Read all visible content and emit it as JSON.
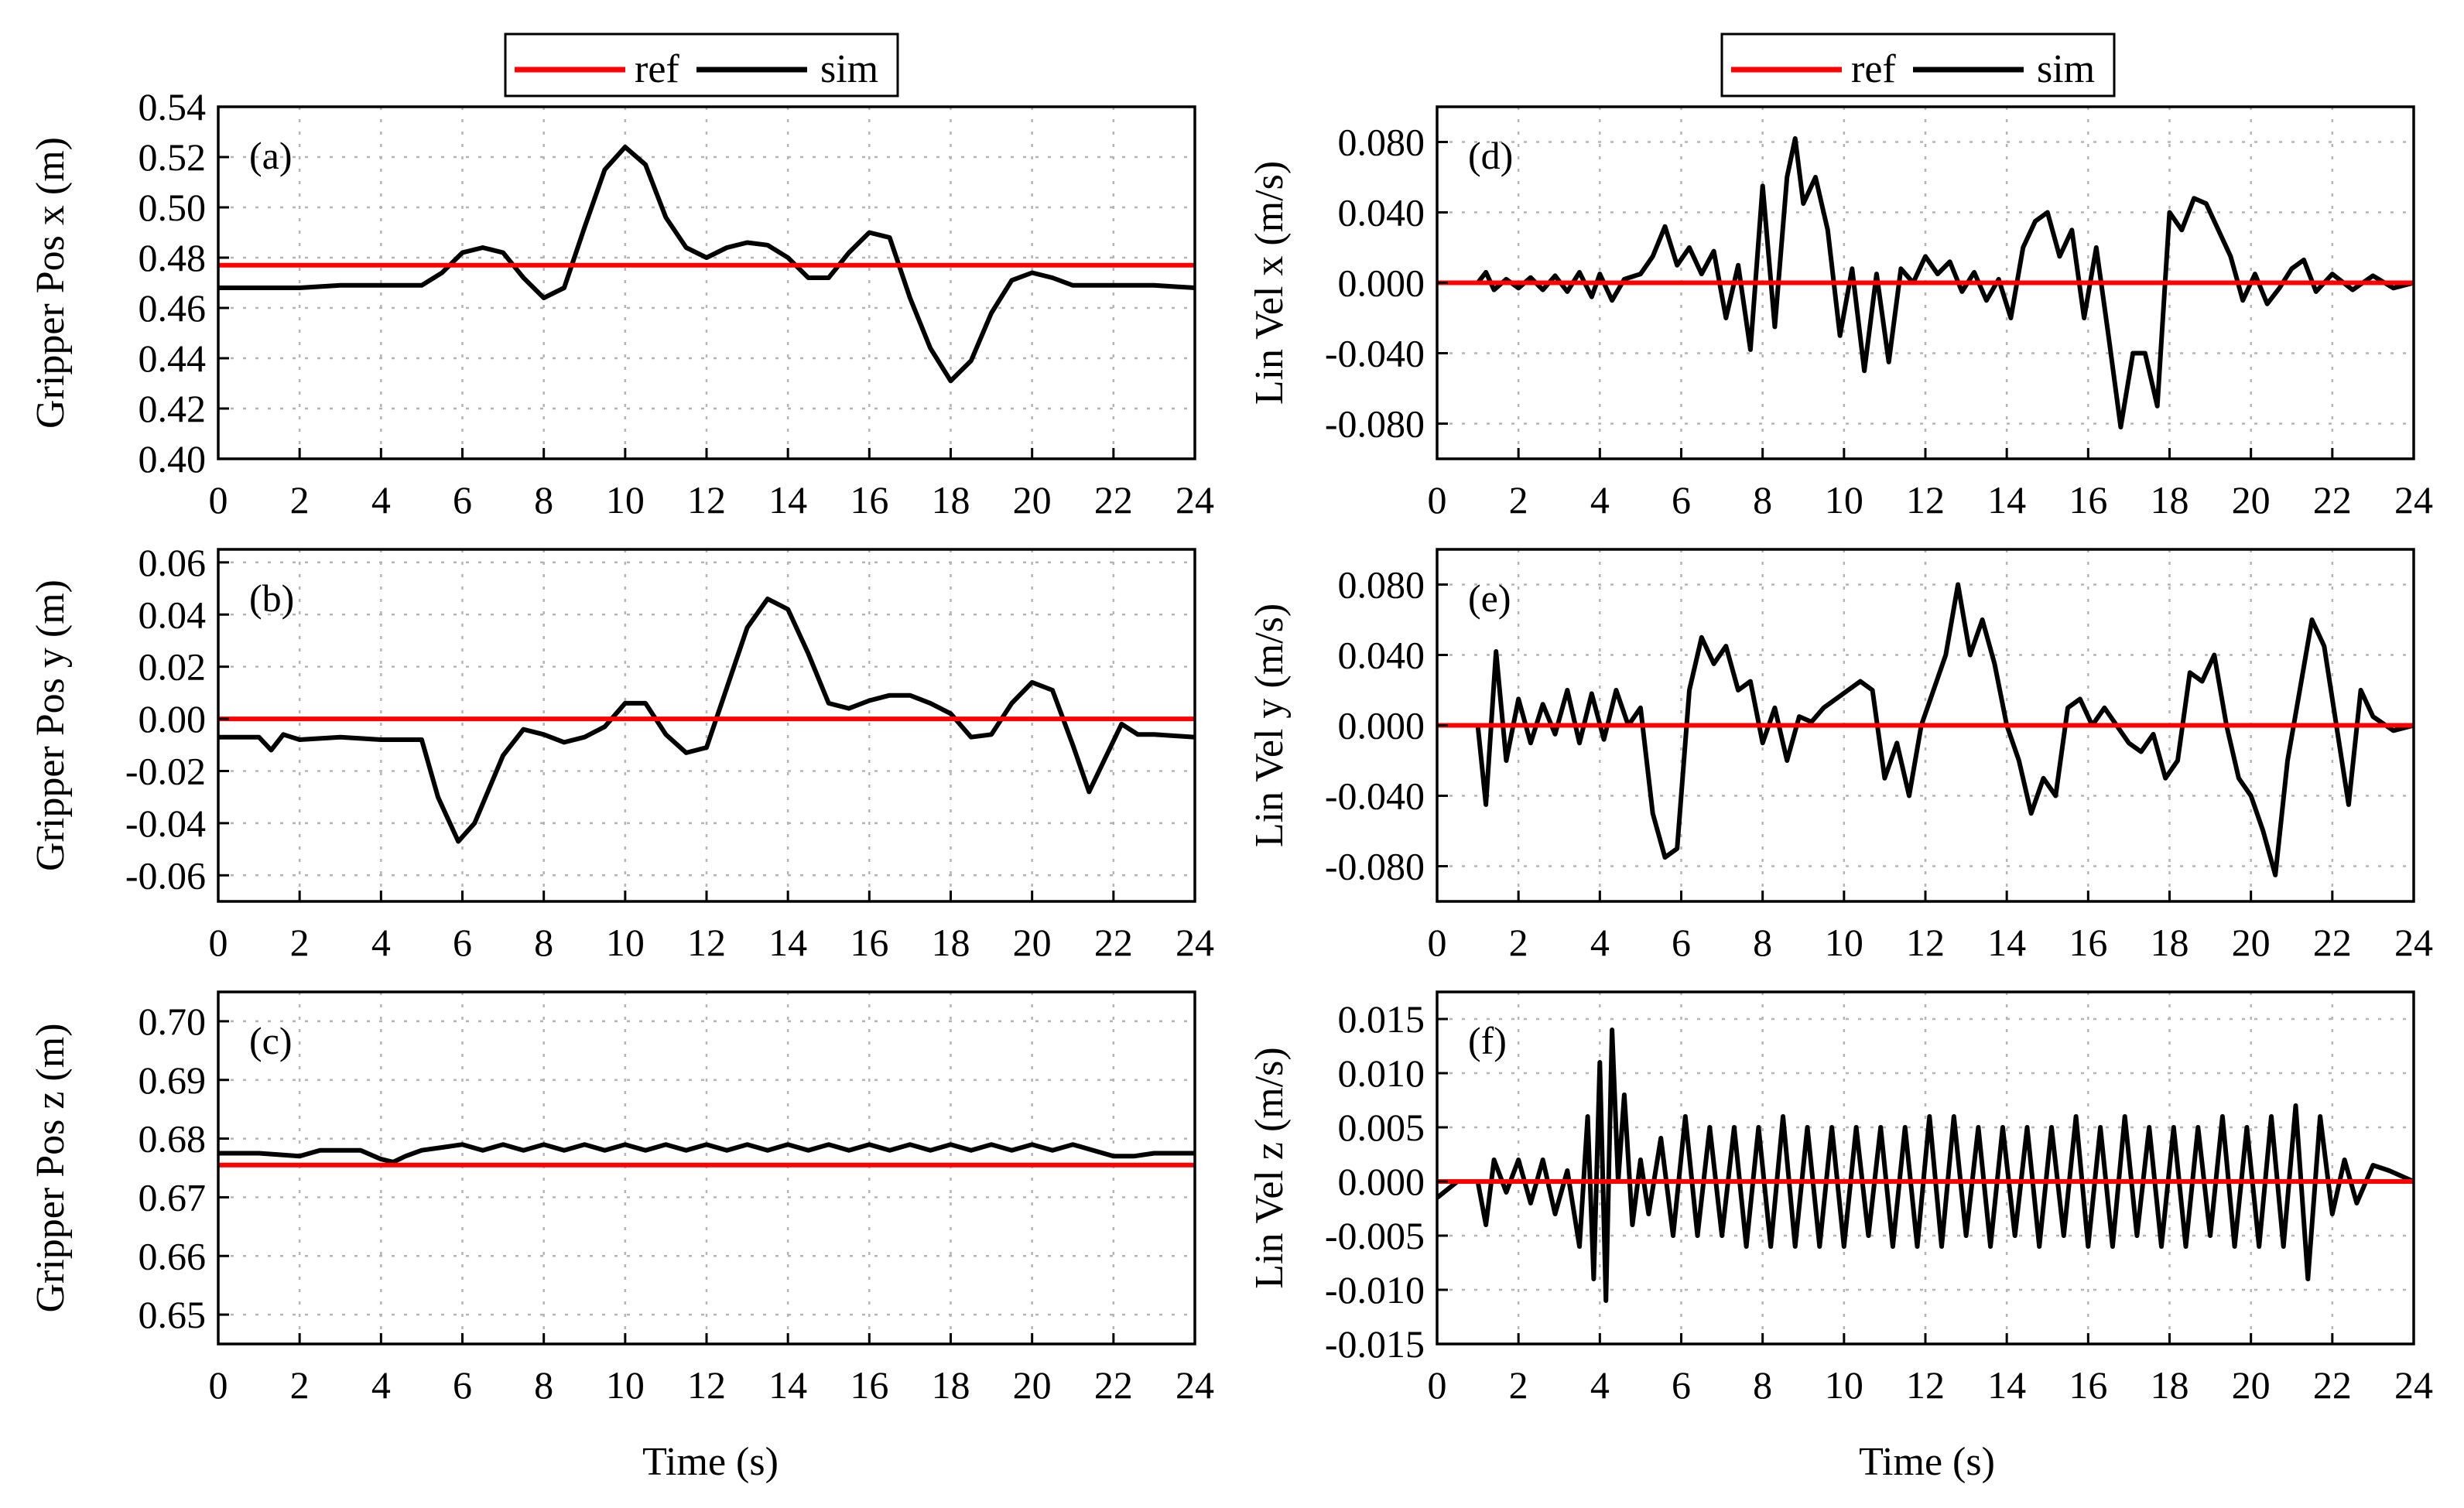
{
  "colors": {
    "ref": "#ff0000",
    "sim": "#000000",
    "grid": "#b4b4b4",
    "axis": "#000000"
  },
  "xlabel_left": "Time (s)",
  "xlabel_right": "Time (s)",
  "legend_left": {
    "ref_label": "ref",
    "sim_label": "sim"
  },
  "legend_right": {
    "ref_label": "ref",
    "sim_label": "sim"
  },
  "chart_data": [
    {
      "id": "a",
      "type": "line",
      "panel_label": "(a)",
      "ylabel": "Gripper Pos x (m)",
      "xlim": [
        0,
        24
      ],
      "ylim": [
        0.4,
        0.54
      ],
      "xticks": [
        0,
        2,
        4,
        6,
        8,
        10,
        12,
        14,
        16,
        18,
        20,
        22,
        24
      ],
      "yticks": [
        0.4,
        0.42,
        0.44,
        0.46,
        0.48,
        0.5,
        0.52,
        0.54
      ],
      "ytick_labels": [
        "0.40",
        "0.42",
        "0.44",
        "0.46",
        "0.48",
        "0.50",
        "0.52",
        "0.54"
      ],
      "grid": true,
      "legend": "above",
      "series": [
        {
          "name": "ref",
          "x": [
            0,
            24
          ],
          "y": [
            0.477,
            0.477
          ]
        },
        {
          "name": "sim",
          "x": [
            0,
            1,
            2,
            3,
            4,
            5,
            5.5,
            6,
            6.5,
            7,
            7.5,
            8,
            8.5,
            9,
            9.5,
            10,
            10.5,
            11,
            11.5,
            12,
            12.5,
            13,
            13.5,
            14,
            14.5,
            15,
            15.5,
            16,
            16.5,
            17,
            17.5,
            18,
            18.5,
            19,
            19.5,
            20,
            20.5,
            21,
            22,
            23,
            24
          ],
          "y": [
            0.468,
            0.468,
            0.468,
            0.469,
            0.469,
            0.469,
            0.474,
            0.482,
            0.484,
            0.482,
            0.472,
            0.464,
            0.468,
            0.492,
            0.515,
            0.524,
            0.517,
            0.496,
            0.484,
            0.48,
            0.484,
            0.486,
            0.485,
            0.48,
            0.472,
            0.472,
            0.482,
            0.49,
            0.488,
            0.464,
            0.444,
            0.431,
            0.439,
            0.458,
            0.471,
            0.474,
            0.472,
            0.469,
            0.469,
            0.469,
            0.468
          ]
        }
      ]
    },
    {
      "id": "b",
      "type": "line",
      "panel_label": "(b)",
      "ylabel": "Gripper Pos y (m)",
      "xlim": [
        0,
        24
      ],
      "ylim": [
        -0.07,
        0.065
      ],
      "xticks": [
        0,
        2,
        4,
        6,
        8,
        10,
        12,
        14,
        16,
        18,
        20,
        22,
        24
      ],
      "yticks": [
        -0.06,
        -0.04,
        -0.02,
        0.0,
        0.02,
        0.04,
        0.06
      ],
      "ytick_labels": [
        "-0.06",
        "-0.04",
        "-0.02",
        "0.00",
        "0.02",
        "0.04",
        "0.06"
      ],
      "grid": true,
      "series": [
        {
          "name": "ref",
          "x": [
            0,
            24
          ],
          "y": [
            0.0,
            0.0
          ]
        },
        {
          "name": "sim",
          "x": [
            0,
            1,
            1.3,
            1.6,
            2,
            3,
            4,
            5,
            5.4,
            5.9,
            6.3,
            7,
            7.5,
            8,
            8.5,
            9,
            9.5,
            10,
            10.5,
            11,
            11.5,
            12,
            12.5,
            13,
            13.5,
            14,
            14.5,
            15,
            15.5,
            16,
            16.5,
            17,
            17.5,
            18,
            18.5,
            19,
            19.5,
            20,
            20.5,
            21,
            21.4,
            21.8,
            22.2,
            22.6,
            23,
            24
          ],
          "y": [
            -0.007,
            -0.007,
            -0.012,
            -0.006,
            -0.008,
            -0.007,
            -0.008,
            -0.008,
            -0.03,
            -0.047,
            -0.04,
            -0.014,
            -0.004,
            -0.006,
            -0.009,
            -0.007,
            -0.003,
            0.006,
            0.006,
            -0.006,
            -0.013,
            -0.011,
            0.012,
            0.035,
            0.046,
            0.042,
            0.025,
            0.006,
            0.004,
            0.007,
            0.009,
            0.009,
            0.006,
            0.002,
            -0.007,
            -0.006,
            0.006,
            0.014,
            0.011,
            -0.01,
            -0.028,
            -0.015,
            -0.002,
            -0.006,
            -0.006,
            -0.007
          ]
        }
      ]
    },
    {
      "id": "c",
      "type": "line",
      "panel_label": "(c)",
      "ylabel": "Gripper Pos z (m)",
      "xlim": [
        0,
        24
      ],
      "ylim": [
        0.645,
        0.705
      ],
      "xticks": [
        0,
        2,
        4,
        6,
        8,
        10,
        12,
        14,
        16,
        18,
        20,
        22,
        24
      ],
      "yticks": [
        0.65,
        0.66,
        0.67,
        0.68,
        0.69,
        0.7
      ],
      "ytick_labels": [
        "0.65",
        "0.66",
        "0.67",
        "0.68",
        "0.69",
        "0.70"
      ],
      "grid": true,
      "series": [
        {
          "name": "ref",
          "x": [
            0,
            24
          ],
          "y": [
            0.6755,
            0.6755
          ]
        },
        {
          "name": "sim",
          "x": [
            0,
            1,
            2,
            2.5,
            3,
            3.5,
            4,
            4.3,
            4.6,
            5,
            5.5,
            6,
            6.5,
            7,
            7.5,
            8,
            8.5,
            9,
            9.5,
            10,
            10.5,
            11,
            11.5,
            12,
            12.5,
            13,
            13.5,
            14,
            14.5,
            15,
            15.5,
            16,
            16.5,
            17,
            17.5,
            18,
            18.5,
            19,
            19.5,
            20,
            20.5,
            21,
            21.5,
            22,
            22.5,
            23,
            24
          ],
          "y": [
            0.6775,
            0.6775,
            0.677,
            0.678,
            0.678,
            0.678,
            0.6765,
            0.676,
            0.677,
            0.678,
            0.6785,
            0.679,
            0.678,
            0.679,
            0.678,
            0.679,
            0.678,
            0.679,
            0.678,
            0.679,
            0.678,
            0.679,
            0.678,
            0.679,
            0.678,
            0.679,
            0.678,
            0.679,
            0.678,
            0.679,
            0.678,
            0.679,
            0.678,
            0.679,
            0.678,
            0.679,
            0.678,
            0.679,
            0.678,
            0.679,
            0.678,
            0.679,
            0.678,
            0.677,
            0.677,
            0.6775,
            0.6775
          ]
        }
      ]
    },
    {
      "id": "d",
      "type": "line",
      "panel_label": "(d)",
      "ylabel": "Lin Vel x (m/s)",
      "xlim": [
        0,
        24
      ],
      "ylim": [
        -0.1,
        0.1
      ],
      "xticks": [
        0,
        2,
        4,
        6,
        8,
        10,
        12,
        14,
        16,
        18,
        20,
        22,
        24
      ],
      "yticks": [
        -0.08,
        -0.04,
        0.0,
        0.04,
        0.08
      ],
      "ytick_labels": [
        "-0.080",
        "-0.040",
        "0.000",
        "0.040",
        "0.080"
      ],
      "grid": true,
      "legend": "above",
      "series": [
        {
          "name": "ref",
          "x": [
            0,
            24
          ],
          "y": [
            0.0,
            0.0
          ]
        },
        {
          "name": "sim",
          "x": [
            0,
            1,
            1.2,
            1.4,
            1.7,
            2,
            2.3,
            2.6,
            2.9,
            3.2,
            3.5,
            3.8,
            4.0,
            4.3,
            4.6,
            5,
            5.3,
            5.6,
            5.9,
            6.2,
            6.5,
            6.8,
            7.1,
            7.4,
            7.7,
            8,
            8.3,
            8.6,
            8.8,
            9.0,
            9.3,
            9.6,
            9.9,
            10.2,
            10.5,
            10.8,
            11.1,
            11.4,
            11.7,
            12,
            12.3,
            12.6,
            12.9,
            13.2,
            13.5,
            13.8,
            14.1,
            14.4,
            14.7,
            15,
            15.3,
            15.6,
            15.9,
            16.2,
            16.5,
            16.8,
            17.1,
            17.4,
            17.7,
            18,
            18.3,
            18.6,
            18.9,
            19.2,
            19.5,
            19.8,
            20.1,
            20.4,
            20.7,
            21,
            21.3,
            21.6,
            22,
            22.5,
            23,
            23.5,
            24
          ],
          "y": [
            0,
            0,
            0.006,
            -0.004,
            0.002,
            -0.003,
            0.003,
            -0.004,
            0.004,
            -0.005,
            0.006,
            -0.008,
            0.005,
            -0.01,
            0.002,
            0.005,
            0.015,
            0.032,
            0.01,
            0.02,
            0.005,
            0.018,
            -0.02,
            0.01,
            -0.038,
            0.055,
            -0.025,
            0.06,
            0.082,
            0.045,
            0.06,
            0.03,
            -0.03,
            0.008,
            -0.05,
            0.005,
            -0.045,
            0.008,
            0.0,
            0.015,
            0.005,
            0.012,
            -0.005,
            0.006,
            -0.01,
            0.002,
            -0.02,
            0.02,
            0.035,
            0.04,
            0.015,
            0.03,
            -0.02,
            0.02,
            -0.03,
            -0.082,
            -0.04,
            -0.04,
            -0.07,
            0.04,
            0.03,
            0.048,
            0.045,
            0.03,
            0.015,
            -0.01,
            0.005,
            -0.012,
            -0.003,
            0.008,
            0.013,
            -0.005,
            0.005,
            -0.004,
            0.004,
            -0.003,
            0.0
          ]
        }
      ]
    },
    {
      "id": "e",
      "type": "line",
      "panel_label": "(e)",
      "ylabel": "Lin Vel y (m/s)",
      "xlim": [
        0,
        24
      ],
      "ylim": [
        -0.1,
        0.1
      ],
      "xticks": [
        0,
        2,
        4,
        6,
        8,
        10,
        12,
        14,
        16,
        18,
        20,
        22,
        24
      ],
      "yticks": [
        -0.08,
        -0.04,
        0.0,
        0.04,
        0.08
      ],
      "ytick_labels": [
        "-0.080",
        "-0.040",
        "0.000",
        "0.040",
        "0.080"
      ],
      "grid": true,
      "series": [
        {
          "name": "ref",
          "x": [
            0,
            24
          ],
          "y": [
            0.0,
            0.0
          ]
        },
        {
          "name": "sim",
          "x": [
            0,
            1,
            1.2,
            1.45,
            1.7,
            2,
            2.3,
            2.6,
            2.9,
            3.2,
            3.5,
            3.8,
            4.1,
            4.4,
            4.7,
            5,
            5.3,
            5.6,
            5.9,
            6.2,
            6.5,
            6.8,
            7.1,
            7.4,
            7.7,
            8,
            8.3,
            8.6,
            8.9,
            9.2,
            9.5,
            9.8,
            10.1,
            10.4,
            10.7,
            11,
            11.3,
            11.6,
            11.9,
            12.2,
            12.5,
            12.8,
            13.1,
            13.4,
            13.7,
            14,
            14.3,
            14.6,
            14.9,
            15.2,
            15.5,
            15.8,
            16.1,
            16.4,
            16.7,
            17,
            17.3,
            17.6,
            17.9,
            18.2,
            18.5,
            18.8,
            19.1,
            19.4,
            19.7,
            20,
            20.3,
            20.6,
            20.9,
            21.2,
            21.5,
            21.8,
            22.1,
            22.4,
            22.7,
            23,
            23.5,
            24
          ],
          "y": [
            0,
            0,
            -0.045,
            0.042,
            -0.02,
            0.015,
            -0.01,
            0.012,
            -0.005,
            0.02,
            -0.01,
            0.018,
            -0.008,
            0.02,
            0.0,
            0.01,
            -0.05,
            -0.075,
            -0.07,
            0.02,
            0.05,
            0.035,
            0.045,
            0.02,
            0.025,
            -0.01,
            0.01,
            -0.02,
            0.005,
            0.002,
            0.01,
            0.015,
            0.02,
            0.025,
            0.02,
            -0.03,
            -0.01,
            -0.04,
            0.0,
            0.02,
            0.04,
            0.08,
            0.04,
            0.06,
            0.035,
            0.0,
            -0.02,
            -0.05,
            -0.03,
            -0.04,
            0.01,
            0.015,
            0.0,
            0.01,
            0.0,
            -0.01,
            -0.015,
            -0.005,
            -0.03,
            -0.02,
            0.03,
            0.025,
            0.04,
            0.0,
            -0.03,
            -0.04,
            -0.06,
            -0.085,
            -0.02,
            0.02,
            0.06,
            0.045,
            0.0,
            -0.045,
            0.02,
            0.005,
            -0.003,
            0.0
          ]
        }
      ]
    },
    {
      "id": "f",
      "type": "line",
      "panel_label": "(f)",
      "ylabel": "Lin Vel z (m/s)",
      "xlim": [
        0,
        24
      ],
      "ylim": [
        -0.015,
        0.0175
      ],
      "xticks": [
        0,
        2,
        4,
        6,
        8,
        10,
        12,
        14,
        16,
        18,
        20,
        22,
        24
      ],
      "yticks": [
        -0.015,
        -0.01,
        -0.005,
        0.0,
        0.005,
        0.01,
        0.015
      ],
      "ytick_labels": [
        "-0.015",
        "-0.010",
        "-0.005",
        "0.000",
        "0.005",
        "0.010",
        "0.015"
      ],
      "grid": true,
      "series": [
        {
          "name": "ref",
          "x": [
            0,
            24
          ],
          "y": [
            0.0,
            0.0
          ]
        },
        {
          "name": "sim",
          "x": [
            0,
            0.5,
            1,
            1.2,
            1.4,
            1.7,
            2,
            2.3,
            2.6,
            2.9,
            3.2,
            3.5,
            3.7,
            3.85,
            4.0,
            4.15,
            4.3,
            4.45,
            4.6,
            4.8,
            5.0,
            5.2,
            5.5,
            5.8,
            6.1,
            6.4,
            6.7,
            7.0,
            7.3,
            7.6,
            7.9,
            8.2,
            8.5,
            8.8,
            9.1,
            9.4,
            9.7,
            10.0,
            10.3,
            10.6,
            10.9,
            11.2,
            11.5,
            11.8,
            12.1,
            12.4,
            12.7,
            13.0,
            13.3,
            13.6,
            13.9,
            14.2,
            14.5,
            14.8,
            15.1,
            15.4,
            15.7,
            16.0,
            16.3,
            16.6,
            16.9,
            17.2,
            17.5,
            17.8,
            18.1,
            18.4,
            18.7,
            19.0,
            19.3,
            19.6,
            19.9,
            20.2,
            20.5,
            20.8,
            21.1,
            21.4,
            21.7,
            22.0,
            22.3,
            22.6,
            23.0,
            23.4,
            24
          ],
          "y": [
            -0.0015,
            0,
            0,
            -0.004,
            0.002,
            -0.001,
            0.002,
            -0.002,
            0.002,
            -0.003,
            0.001,
            -0.006,
            0.006,
            -0.009,
            0.011,
            -0.011,
            0.014,
            0.0,
            0.008,
            -0.004,
            0.002,
            -0.003,
            0.004,
            -0.005,
            0.006,
            -0.005,
            0.005,
            -0.005,
            0.005,
            -0.006,
            0.005,
            -0.006,
            0.006,
            -0.006,
            0.005,
            -0.006,
            0.005,
            -0.006,
            0.005,
            -0.005,
            0.005,
            -0.006,
            0.005,
            -0.006,
            0.006,
            -0.006,
            0.006,
            -0.005,
            0.005,
            -0.006,
            0.005,
            -0.005,
            0.005,
            -0.006,
            0.005,
            -0.005,
            0.006,
            -0.006,
            0.005,
            -0.006,
            0.006,
            -0.005,
            0.005,
            -0.006,
            0.005,
            -0.006,
            0.005,
            -0.005,
            0.006,
            -0.006,
            0.005,
            -0.006,
            0.006,
            -0.006,
            0.007,
            -0.009,
            0.006,
            -0.003,
            0.002,
            -0.002,
            0.0015,
            0.001,
            0.0
          ]
        }
      ]
    }
  ]
}
